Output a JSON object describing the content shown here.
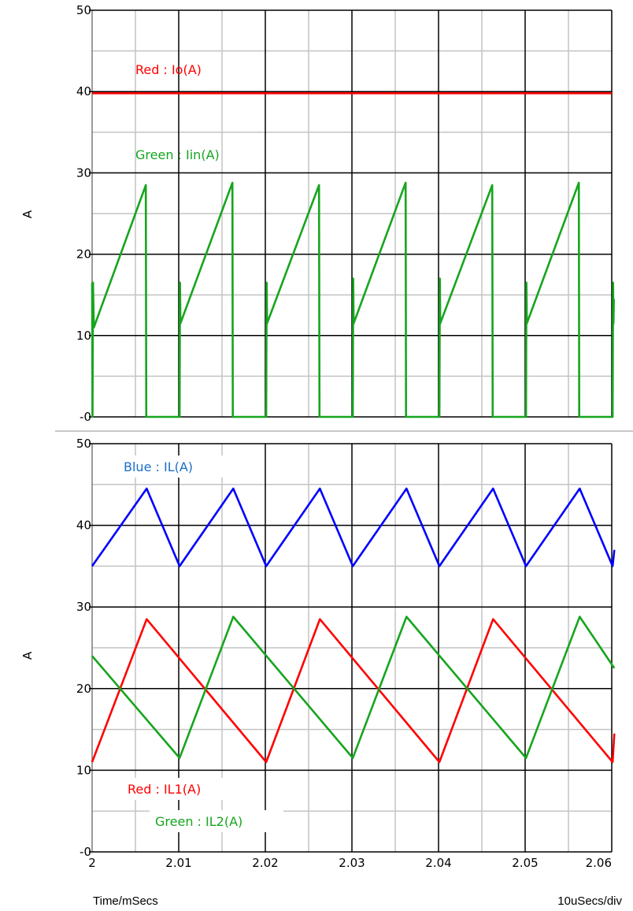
{
  "chart_data": [
    {
      "type": "line",
      "title": "",
      "ylabel": "A",
      "xlim": [
        2.0,
        2.06
      ],
      "ylim": [
        0,
        50
      ],
      "yticks": [
        "-0",
        "10",
        "20",
        "30",
        "40",
        "50"
      ],
      "grid": true,
      "annotations": [
        "Red : Io(A)",
        "Green : Iin(A)"
      ],
      "series": [
        {
          "name": "Io(A)",
          "color": "#ff0000",
          "x": [
            2.0,
            2.06
          ],
          "y": [
            39.8,
            39.8
          ]
        },
        {
          "name": "Iin(A)",
          "color": "#16a51e",
          "x": [
            2.0,
            2.00005,
            2.0001,
            2.0002,
            2.0062,
            2.00625,
            2.0063,
            2.0101,
            2.01015,
            2.0102,
            2.0162,
            2.01625,
            2.0163,
            2.0201,
            2.02015,
            2.0202,
            2.0262,
            2.02625,
            2.0263,
            2.0301,
            2.03015,
            2.0302,
            2.0362,
            2.03625,
            2.0363,
            2.0401,
            2.04015,
            2.0402,
            2.0462,
            2.04625,
            2.0463,
            2.0501,
            2.05015,
            2.0502,
            2.0562,
            2.05625,
            2.0563,
            2.0601,
            2.06015,
            2.0602,
            2.06025
          ],
          "y": [
            16.5,
            0,
            16.5,
            11.0,
            28.5,
            0,
            0,
            0,
            16.5,
            11.5,
            28.8,
            0,
            0,
            0,
            16.5,
            11.5,
            28.5,
            0,
            0,
            0,
            17.0,
            11.5,
            28.8,
            0,
            0,
            0,
            17.0,
            11.5,
            28.5,
            0,
            0,
            0,
            16.5,
            11.5,
            28.8,
            0,
            0,
            0,
            16.5,
            11.5,
            14.5
          ]
        }
      ]
    },
    {
      "type": "line",
      "title": "",
      "xlabel": "Time/mSecs",
      "ylabel": "A",
      "xlim": [
        2.0,
        2.06
      ],
      "ylim": [
        0,
        50
      ],
      "yticks": [
        "-0",
        "10",
        "20",
        "30",
        "40",
        "50"
      ],
      "xticks": [
        "2",
        "2.01",
        "2.02",
        "2.03",
        "2.04",
        "2.05",
        "2.06"
      ],
      "x_scale_note": "10uSecs/div",
      "grid": true,
      "annotations": [
        "Blue : IL(A)",
        "Red : IL1(A)",
        "Green : IL2(A)"
      ],
      "series": [
        {
          "name": "IL(A)",
          "color": "#0000ff",
          "x": [
            2.0,
            2.0063,
            2.0101,
            2.0163,
            2.0201,
            2.0263,
            2.0301,
            2.0363,
            2.0401,
            2.0463,
            2.0501,
            2.0563,
            2.0601,
            2.0603
          ],
          "y": [
            35.0,
            44.5,
            35.0,
            44.5,
            35.0,
            44.5,
            35.0,
            44.5,
            35.0,
            44.5,
            35.0,
            44.5,
            35.0,
            37.0
          ]
        },
        {
          "name": "IL1(A)",
          "color": "#ff0000",
          "x": [
            2.0,
            2.0063,
            2.0201,
            2.0263,
            2.0401,
            2.0463,
            2.0601,
            2.0603
          ],
          "y": [
            11.0,
            28.5,
            11.0,
            28.5,
            11.0,
            28.5,
            11.0,
            14.5
          ]
        },
        {
          "name": "IL2(A)",
          "color": "#16a51e",
          "x": [
            2.0,
            2.0101,
            2.0163,
            2.0301,
            2.0363,
            2.0501,
            2.0563,
            2.0603
          ],
          "y": [
            24.0,
            11.5,
            28.8,
            11.5,
            28.8,
            11.5,
            28.8,
            22.5
          ]
        }
      ]
    }
  ],
  "footer": {
    "xlabel": "Time/mSecs",
    "scale": "10uSecs/div"
  }
}
